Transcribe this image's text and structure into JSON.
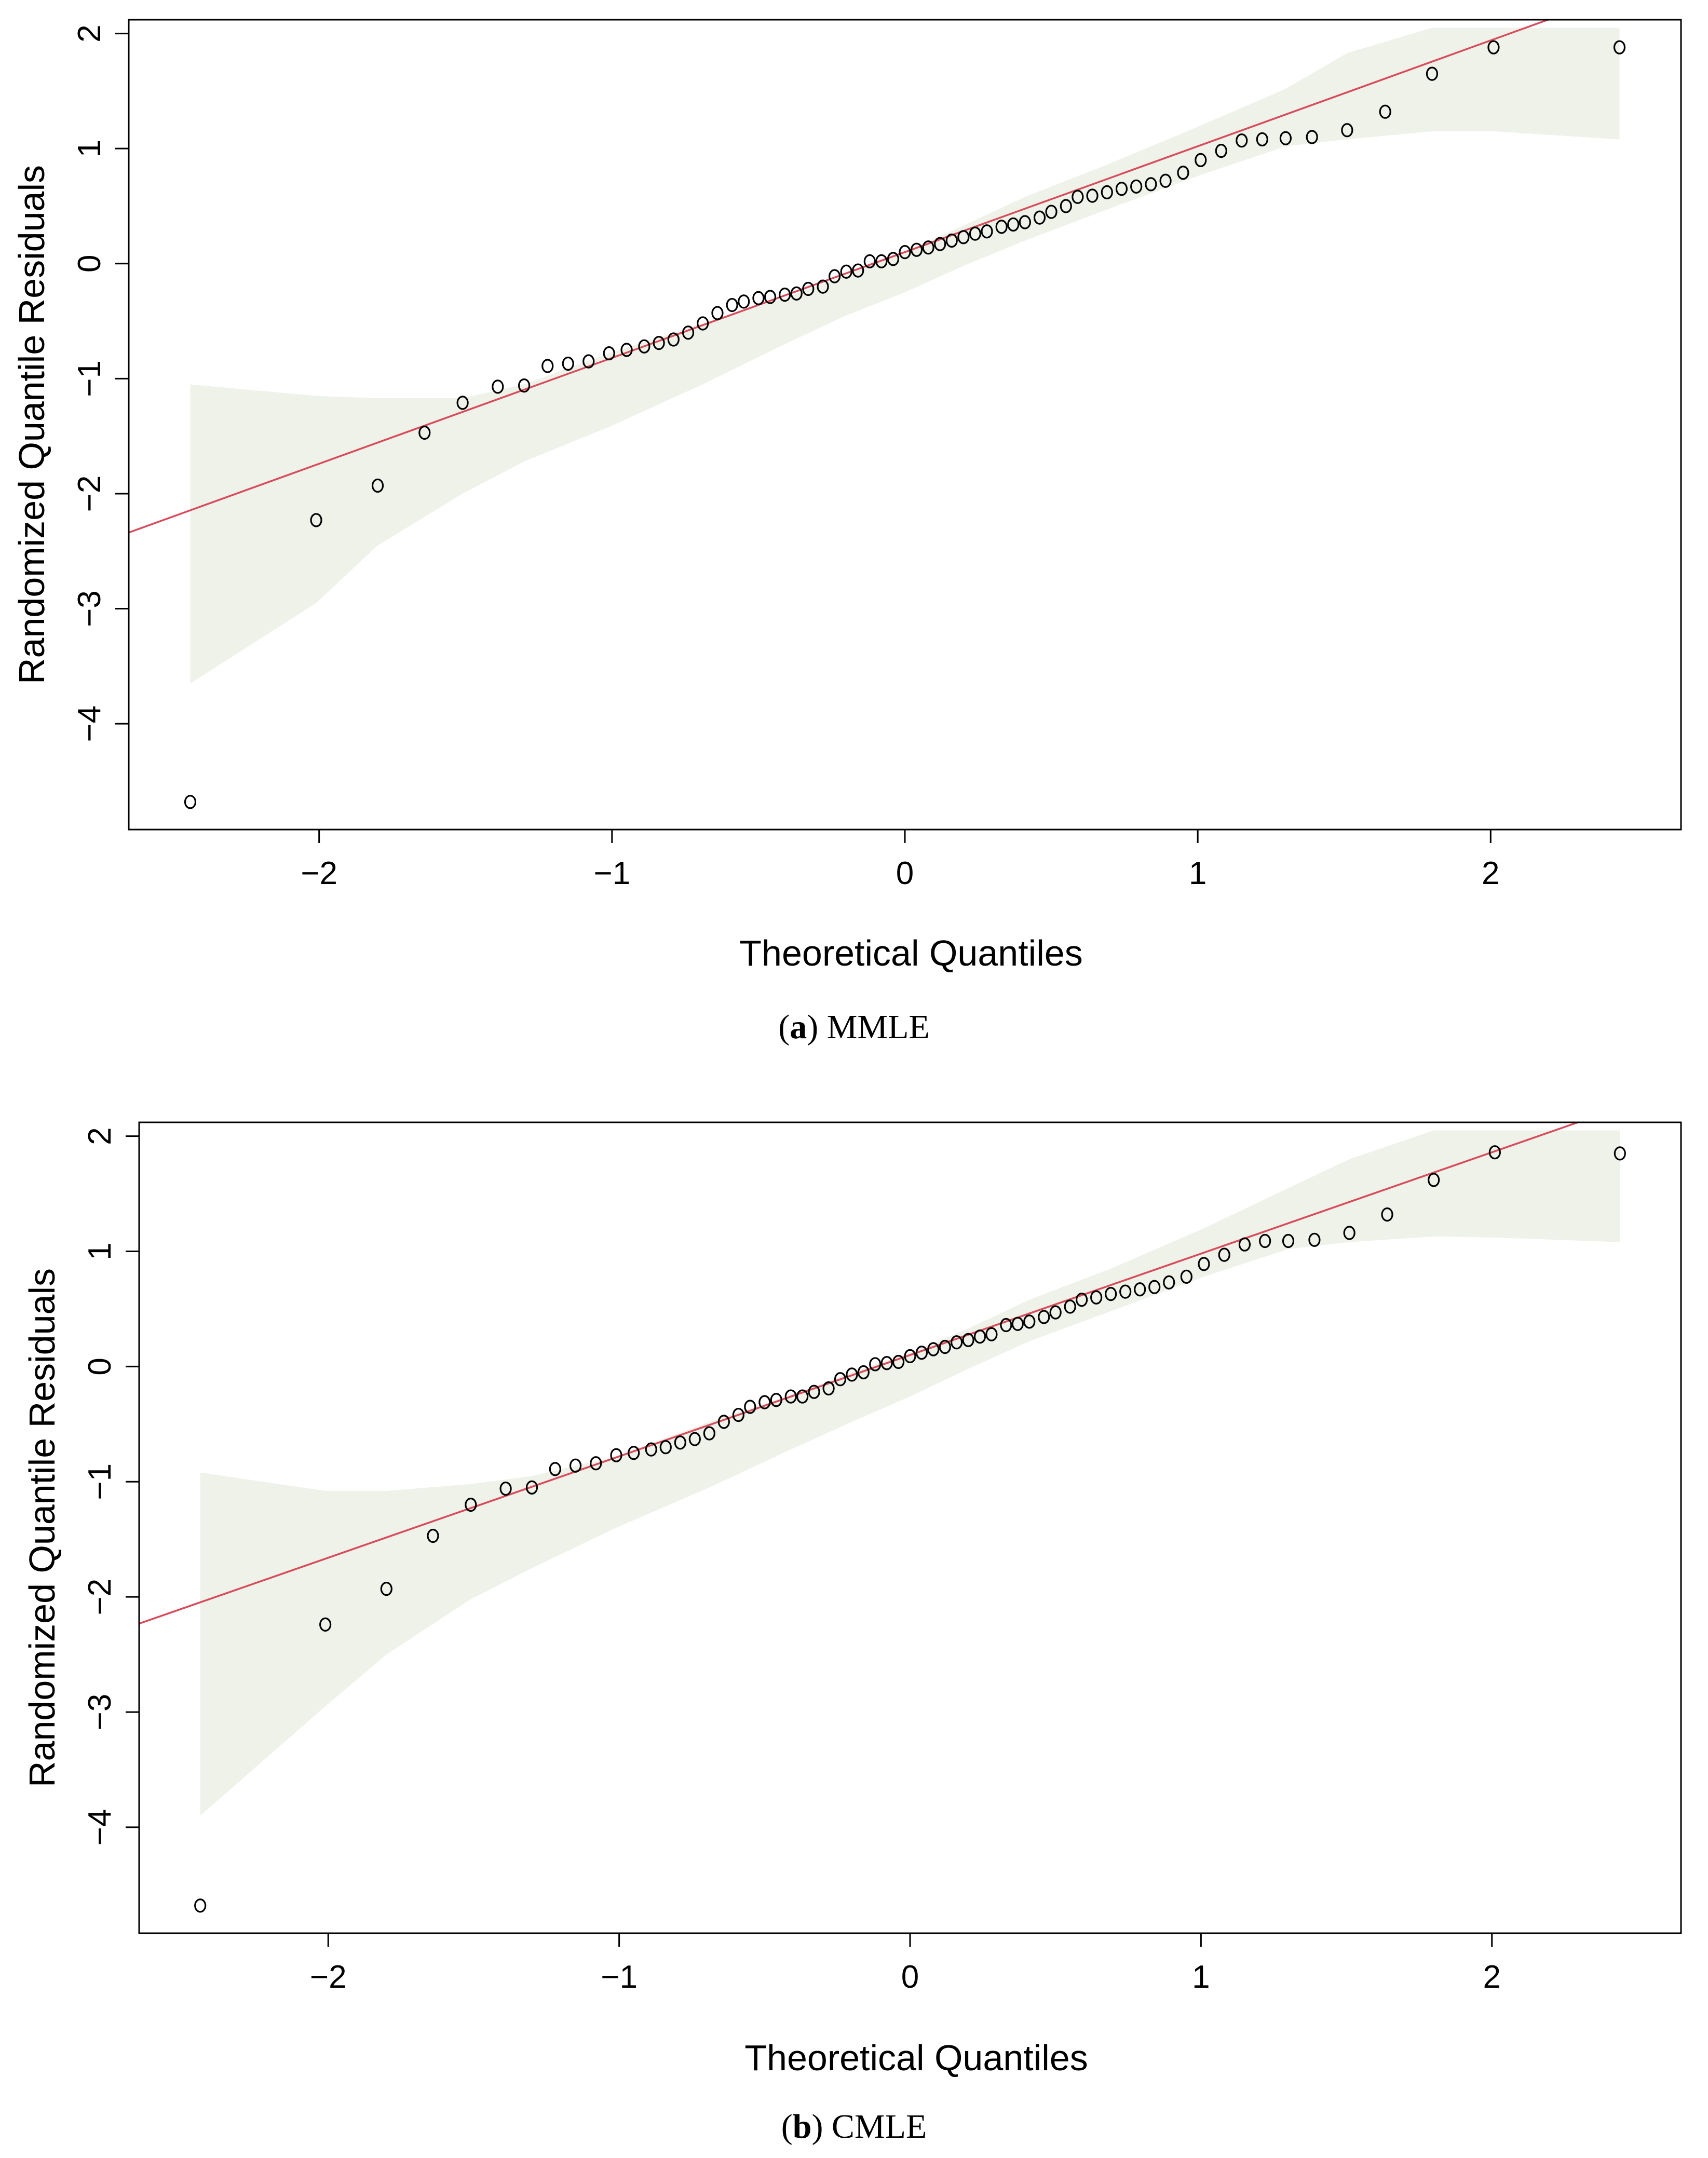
{
  "figure": {
    "panels": [
      {
        "caption_letter": "a",
        "caption_text": "MMLE",
        "chart_data": {
          "type": "scatter",
          "title": "",
          "xlabel": "Theoretical Quantiles",
          "ylabel": "Randomized Quantile Residuals",
          "xlim": [
            -2.65,
            2.65
          ],
          "ylim": [
            -4.92,
            2.12
          ],
          "xticks": [
            -2,
            -1,
            0,
            1,
            2
          ],
          "yticks": [
            -4,
            -3,
            -2,
            -1,
            0,
            1,
            2
          ],
          "grid": false,
          "points_x": [
            -2.44,
            -2.01,
            -1.8,
            -1.64,
            -1.51,
            -1.39,
            -1.3,
            -1.22,
            -1.15,
            -1.08,
            -1.01,
            -0.95,
            -0.89,
            -0.84,
            -0.79,
            -0.74,
            -0.69,
            -0.64,
            -0.59,
            -0.55,
            -0.5,
            -0.46,
            -0.41,
            -0.37,
            -0.33,
            -0.28,
            -0.24,
            -0.2,
            -0.16,
            -0.12,
            -0.08,
            -0.04,
            0.0,
            0.04,
            0.08,
            0.12,
            0.16,
            0.2,
            0.24,
            0.28,
            0.33,
            0.37,
            0.41,
            0.46,
            0.5,
            0.55,
            0.59,
            0.64,
            0.69,
            0.74,
            0.79,
            0.84,
            0.89,
            0.95,
            1.01,
            1.08,
            1.15,
            1.22,
            1.3,
            1.39,
            1.51,
            1.64,
            1.8,
            2.01,
            2.44
          ],
          "points_y": [
            -4.68,
            -2.23,
            -1.93,
            -1.47,
            -1.21,
            -1.07,
            -1.06,
            -0.89,
            -0.87,
            -0.85,
            -0.78,
            -0.75,
            -0.72,
            -0.69,
            -0.66,
            -0.6,
            -0.52,
            -0.43,
            -0.36,
            -0.33,
            -0.3,
            -0.29,
            -0.27,
            -0.26,
            -0.22,
            -0.2,
            -0.11,
            -0.07,
            -0.06,
            0.02,
            0.02,
            0.04,
            0.1,
            0.12,
            0.14,
            0.17,
            0.2,
            0.23,
            0.26,
            0.28,
            0.32,
            0.34,
            0.36,
            0.4,
            0.45,
            0.5,
            0.58,
            0.59,
            0.62,
            0.65,
            0.67,
            0.69,
            0.72,
            0.79,
            0.9,
            0.98,
            1.07,
            1.08,
            1.09,
            1.1,
            1.16,
            1.32,
            1.65,
            1.88,
            1.88
          ],
          "reference_line": {
            "intercept": 0.1,
            "slope": 0.92
          },
          "envelope": {
            "x": [
              -2.44,
              -2.01,
              -1.8,
              -1.51,
              -1.3,
              -1.01,
              -0.69,
              -0.41,
              -0.2,
              0.0,
              0.2,
              0.41,
              0.69,
              1.01,
              1.3,
              1.51,
              1.8,
              2.01,
              2.44
            ],
            "lower": [
              -3.65,
              -2.95,
              -2.45,
              -2.0,
              -1.72,
              -1.42,
              -1.05,
              -0.7,
              -0.45,
              -0.25,
              -0.02,
              0.2,
              0.47,
              0.77,
              1.02,
              1.08,
              1.15,
              1.15,
              1.08
            ],
            "upper": [
              -1.05,
              -1.15,
              -1.17,
              -1.17,
              -1.05,
              -0.78,
              -0.52,
              -0.3,
              -0.1,
              0.1,
              0.33,
              0.58,
              0.86,
              1.2,
              1.52,
              1.83,
              2.05,
              2.05,
              2.05
            ]
          }
        }
      },
      {
        "caption_letter": "b",
        "caption_text": "CMLE",
        "chart_data": {
          "type": "scatter",
          "title": "",
          "xlabel": "Theoretical Quantiles",
          "ylabel": "Randomized Quantile Residuals",
          "xlim": [
            -2.65,
            2.65
          ],
          "ylim": [
            -4.92,
            2.12
          ],
          "xticks": [
            -2,
            -1,
            0,
            1,
            2
          ],
          "yticks": [
            -4,
            -3,
            -2,
            -1,
            0,
            1,
            2
          ],
          "grid": false,
          "points_x": [
            -2.44,
            -2.01,
            -1.8,
            -1.64,
            -1.51,
            -1.39,
            -1.3,
            -1.22,
            -1.15,
            -1.08,
            -1.01,
            -0.95,
            -0.89,
            -0.84,
            -0.79,
            -0.74,
            -0.69,
            -0.64,
            -0.59,
            -0.55,
            -0.5,
            -0.46,
            -0.41,
            -0.37,
            -0.33,
            -0.28,
            -0.24,
            -0.2,
            -0.16,
            -0.12,
            -0.08,
            -0.04,
            0.0,
            0.04,
            0.08,
            0.12,
            0.16,
            0.2,
            0.24,
            0.28,
            0.33,
            0.37,
            0.41,
            0.46,
            0.5,
            0.55,
            0.59,
            0.64,
            0.69,
            0.74,
            0.79,
            0.84,
            0.89,
            0.95,
            1.01,
            1.08,
            1.15,
            1.22,
            1.3,
            1.39,
            1.51,
            1.64,
            1.8,
            2.01,
            2.44
          ],
          "points_y": [
            -4.68,
            -2.24,
            -1.93,
            -1.47,
            -1.2,
            -1.06,
            -1.05,
            -0.89,
            -0.86,
            -0.84,
            -0.77,
            -0.75,
            -0.72,
            -0.7,
            -0.66,
            -0.63,
            -0.58,
            -0.48,
            -0.42,
            -0.35,
            -0.31,
            -0.29,
            -0.26,
            -0.26,
            -0.22,
            -0.19,
            -0.11,
            -0.07,
            -0.05,
            0.02,
            0.03,
            0.04,
            0.09,
            0.12,
            0.15,
            0.17,
            0.21,
            0.23,
            0.26,
            0.28,
            0.36,
            0.37,
            0.39,
            0.43,
            0.47,
            0.52,
            0.58,
            0.6,
            0.63,
            0.65,
            0.67,
            0.69,
            0.73,
            0.78,
            0.89,
            0.97,
            1.06,
            1.09,
            1.09,
            1.1,
            1.16,
            1.32,
            1.62,
            1.86,
            1.85
          ],
          "reference_line": {
            "intercept": 0.1,
            "slope": 0.88
          },
          "envelope": {
            "x": [
              -2.44,
              -2.01,
              -1.8,
              -1.51,
              -1.3,
              -1.01,
              -0.69,
              -0.41,
              -0.2,
              0.0,
              0.2,
              0.41,
              0.69,
              1.01,
              1.3,
              1.51,
              1.8,
              2.01,
              2.44
            ],
            "lower": [
              -3.9,
              -2.95,
              -2.5,
              -2.02,
              -1.75,
              -1.4,
              -1.05,
              -0.72,
              -0.48,
              -0.26,
              -0.02,
              0.22,
              0.48,
              0.78,
              1.02,
              1.08,
              1.13,
              1.12,
              1.08
            ],
            "upper": [
              -0.92,
              -1.08,
              -1.08,
              -1.02,
              -0.95,
              -0.78,
              -0.48,
              -0.25,
              -0.05,
              0.12,
              0.33,
              0.58,
              0.85,
              1.2,
              1.55,
              1.8,
              2.05,
              2.05,
              2.05
            ]
          }
        }
      }
    ]
  },
  "colors": {
    "envelope_fill": "#eff2e9",
    "reference_line": "#d94a5a",
    "points": "#000000",
    "axes": "#000000"
  }
}
